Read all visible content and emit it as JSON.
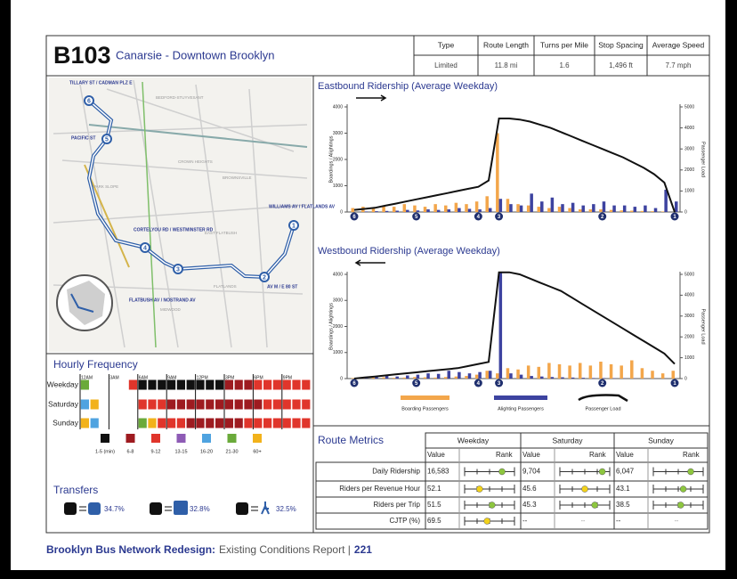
{
  "header": {
    "code": "B103",
    "name": "Canarsie - Downtown Brooklyn",
    "columns": [
      "Type",
      "Route Length",
      "Turns per Mile",
      "Stop Spacing",
      "Average Speed"
    ],
    "values": [
      "Limited",
      "11.8 mi",
      "1.6",
      "1,496 ft",
      "7.7 mph"
    ]
  },
  "map": {
    "stops": [
      {
        "number": "6",
        "label": "TILLARY ST / CADMAN PLZ E"
      },
      {
        "number": "5",
        "label": "PACIFIC ST"
      },
      {
        "number": "4",
        "label": "CORTELYOU RD / WESTMINSTER RD"
      },
      {
        "number": "3",
        "label": "FLATBUSH AV / NOSTRAND AV"
      },
      {
        "number": "2",
        "label": "AV M / E 80 ST"
      },
      {
        "number": "1",
        "label": "WILLIAMS AV / FLATLANDS AV"
      }
    ],
    "areas": [
      "BEDFORD-STUYVESANT",
      "CROWN HEIGHTS",
      "PARK SLOPE",
      "BROWNSVILLE",
      "EAST FLATBUSH",
      "FLATLANDS",
      "MIDWOOD"
    ]
  },
  "hourly": {
    "title": "Hourly Frequency",
    "times": [
      {
        "hour": 0,
        "label": "12AM"
      },
      {
        "hour": 3,
        "label": "3AM"
      },
      {
        "hour": 6,
        "label": "6AM"
      },
      {
        "hour": 9,
        "label": "9AM"
      },
      {
        "hour": 12,
        "label": "12PM"
      },
      {
        "hour": 15,
        "label": "3PM"
      },
      {
        "hour": 18,
        "label": "6PM"
      },
      {
        "hour": 21,
        "label": "9PM"
      }
    ],
    "rows": [
      {
        "label": "Weekday",
        "cells": [
          5,
          null,
          null,
          null,
          null,
          2,
          0,
          0,
          0,
          0,
          0,
          0,
          0,
          0,
          0,
          1,
          1,
          1,
          2,
          2,
          2,
          2,
          2,
          2
        ]
      },
      {
        "label": "Saturday",
        "cells": [
          4,
          6,
          null,
          null,
          null,
          null,
          2,
          2,
          2,
          1,
          1,
          1,
          1,
          1,
          1,
          1,
          1,
          1,
          1,
          2,
          2,
          2,
          2,
          2
        ]
      },
      {
        "label": "Sunday",
        "cells": [
          6,
          4,
          null,
          null,
          null,
          null,
          5,
          6,
          2,
          2,
          2,
          1,
          1,
          1,
          1,
          1,
          1,
          2,
          2,
          2,
          2,
          2,
          2,
          2
        ]
      }
    ],
    "legend": [
      {
        "label": "1-5 (min)",
        "color": "#111111"
      },
      {
        "label": "6-8",
        "color": "#9e1b20"
      },
      {
        "label": "9-12",
        "color": "#e0352b"
      },
      {
        "label": "13-15",
        "color": "#8e5bb5"
      },
      {
        "label": "16-20",
        "color": "#4fa3e0"
      },
      {
        "label": "21-30",
        "color": "#6aaa3a"
      },
      {
        "label": "60+",
        "color": "#f2b21b"
      }
    ]
  },
  "transfers": {
    "title": "Transfers",
    "items": [
      "34.7%",
      "32.8%",
      "32.5%"
    ]
  },
  "eastbound": {
    "type": "bar",
    "title": "Eastbound Ridership (Average Weekday)",
    "direction": "right",
    "y_label": "Boardings / Alightings",
    "y2_label": "Passenger Load",
    "ylim": [
      0,
      4000
    ],
    "yticks": [
      0,
      1000,
      2000,
      3000,
      4000
    ],
    "y2lim": [
      0,
      5000
    ],
    "y2ticks": [
      0,
      1000,
      2000,
      3000,
      4000,
      5000
    ],
    "stops": [
      {
        "label": "6",
        "index": 0
      },
      {
        "label": "5",
        "index": 6
      },
      {
        "label": "4",
        "index": 12
      },
      {
        "label": "3",
        "index": 14
      },
      {
        "label": "2",
        "index": 24
      },
      {
        "label": "1",
        "index": 31
      }
    ],
    "series": [
      {
        "name": "Boarding Passengers",
        "color": "#f3a64b",
        "values": [
          150,
          200,
          150,
          250,
          200,
          300,
          250,
          200,
          300,
          250,
          350,
          300,
          400,
          600,
          3000,
          500,
          300,
          250,
          200,
          150,
          200,
          150,
          100,
          100,
          100,
          80,
          60,
          50,
          40,
          30,
          20,
          0
        ]
      },
      {
        "name": "Alighting Passengers",
        "color": "#3d43a0",
        "values": [
          0,
          20,
          30,
          40,
          50,
          80,
          60,
          100,
          80,
          100,
          150,
          120,
          100,
          150,
          500,
          300,
          250,
          700,
          400,
          550,
          300,
          350,
          250,
          300,
          400,
          250,
          250,
          200,
          250,
          150,
          850,
          400
        ]
      },
      {
        "name": "Passenger Load",
        "color": "#111111",
        "axis": "y2",
        "values": [
          100,
          150,
          200,
          300,
          400,
          500,
          600,
          700,
          800,
          900,
          1000,
          1100,
          1200,
          1500,
          4450,
          4450,
          4400,
          4300,
          4150,
          4000,
          3800,
          3600,
          3400,
          3200,
          3000,
          2800,
          2600,
          2350,
          2100,
          1800,
          1400,
          0
        ]
      }
    ]
  },
  "westbound": {
    "type": "bar",
    "title": "Westbound Ridership (Average Weekday)",
    "direction": "left",
    "y_label": "Boardings / Alightings",
    "y2_label": "Passenger Load",
    "ylim": [
      0,
      4000
    ],
    "yticks": [
      0,
      1000,
      2000,
      3000,
      4000
    ],
    "y2lim": [
      0,
      5000
    ],
    "y2ticks": [
      0,
      1000,
      2000,
      3000,
      4000,
      5000
    ],
    "stops": [
      {
        "label": "6",
        "index": 0
      },
      {
        "label": "5",
        "index": 6
      },
      {
        "label": "4",
        "index": 12
      },
      {
        "label": "3",
        "index": 14
      },
      {
        "label": "2",
        "index": 24
      },
      {
        "label": "1",
        "index": 31
      }
    ],
    "series": [
      {
        "name": "Boarding Passengers",
        "color": "#f3a64b",
        "values": [
          20,
          30,
          40,
          50,
          30,
          40,
          60,
          50,
          40,
          60,
          80,
          100,
          150,
          300,
          200,
          400,
          350,
          500,
          450,
          600,
          550,
          500,
          600,
          500,
          650,
          550,
          500,
          700,
          400,
          300,
          200,
          300
        ]
      },
      {
        "name": "Alighting Passengers",
        "color": "#3d43a0",
        "values": [
          30,
          50,
          100,
          150,
          80,
          120,
          150,
          200,
          180,
          300,
          250,
          200,
          250,
          300,
          4100,
          200,
          150,
          100,
          80,
          60,
          50,
          40,
          30,
          20,
          20,
          15,
          10,
          10,
          5,
          5,
          5,
          5
        ]
      },
      {
        "name": "Passenger Load",
        "color": "#111111",
        "axis": "y2",
        "values": [
          0,
          50,
          100,
          150,
          200,
          250,
          300,
          350,
          400,
          450,
          500,
          600,
          700,
          800,
          5100,
          5100,
          5000,
          4800,
          4600,
          4400,
          4200,
          3900,
          3600,
          3300,
          3000,
          2700,
          2400,
          2100,
          1800,
          1500,
          1200,
          700
        ]
      }
    ]
  },
  "metrics": {
    "title": "Route Metrics",
    "groups": [
      "Weekday",
      "Saturday",
      "Sunday"
    ],
    "subheaders": [
      "Value",
      "Rank"
    ],
    "rows": [
      {
        "label": "Daily Ridership",
        "cells": [
          {
            "value": "16,583",
            "rank": 0.75,
            "color": "#8dc63f"
          },
          {
            "value": "9,704",
            "rank": 0.85,
            "color": "#8dc63f"
          },
          {
            "value": "6,047",
            "rank": 0.75,
            "color": "#8dc63f"
          }
        ]
      },
      {
        "label": "Riders per Revenue Hour",
        "cells": [
          {
            "value": "52.1",
            "rank": 0.3,
            "color": "#f2d21b"
          },
          {
            "value": "45.6",
            "rank": 0.5,
            "color": "#f2d21b"
          },
          {
            "value": "43.1",
            "rank": 0.6,
            "color": "#8dc63f"
          }
        ]
      },
      {
        "label": "Riders per Trip",
        "cells": [
          {
            "value": "51.5",
            "rank": 0.55,
            "color": "#8dc63f"
          },
          {
            "value": "45.3",
            "rank": 0.7,
            "color": "#8dc63f"
          },
          {
            "value": "38.5",
            "rank": 0.55,
            "color": "#8dc63f"
          }
        ]
      },
      {
        "label": "CJTP (%)",
        "cells": [
          {
            "value": "69.5",
            "rank": 0.45,
            "color": "#f2d21b"
          },
          {
            "value": "--",
            "rank": "--"
          },
          {
            "value": "--",
            "rank": "--"
          }
        ]
      }
    ]
  },
  "footer": {
    "brand": "Brooklyn Bus Network Redesign:",
    "report": "Existing Conditions Report |",
    "page": "221"
  }
}
